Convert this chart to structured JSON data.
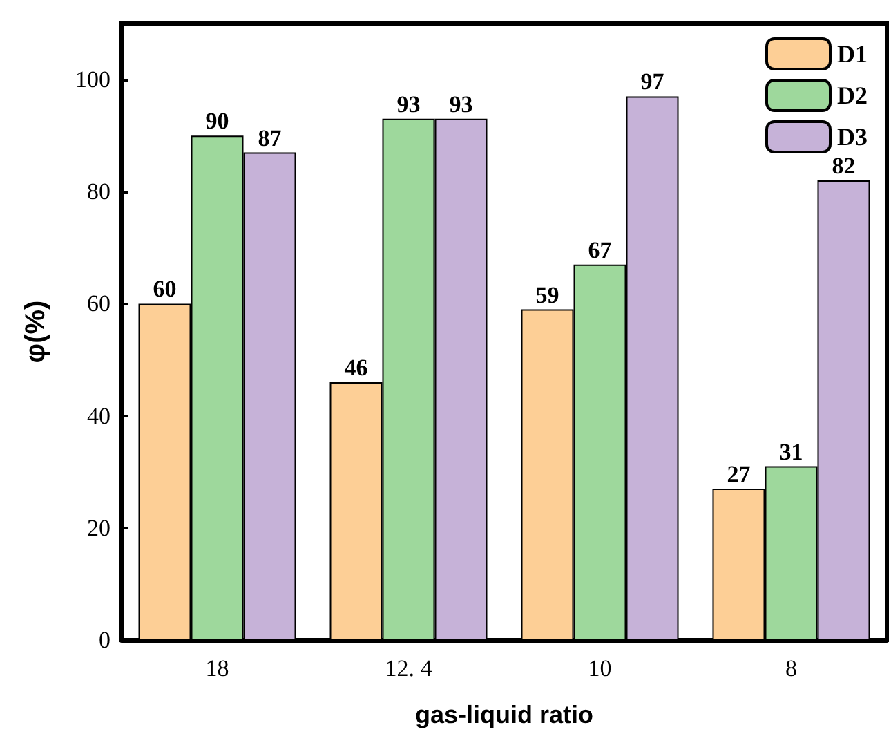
{
  "chart_data": {
    "type": "bar",
    "xlabel": "gas-liquid ratio",
    "ylabel": "φ(%)",
    "categories": [
      "18",
      "12. 4",
      "10",
      "8"
    ],
    "series": [
      {
        "name": "D1",
        "color": "#fdcf96",
        "values": [
          60,
          46,
          59,
          27
        ]
      },
      {
        "name": "D2",
        "color": "#9ed89c",
        "values": [
          90,
          93,
          67,
          31
        ]
      },
      {
        "name": "D3",
        "color": "#c6b2d8",
        "values": [
          87,
          93,
          97,
          82
        ]
      }
    ],
    "ylim": [
      0,
      110
    ],
    "yticks": [
      0,
      20,
      40,
      60,
      80,
      100
    ],
    "grid": false,
    "legend": "top right",
    "data_labels": true
  }
}
